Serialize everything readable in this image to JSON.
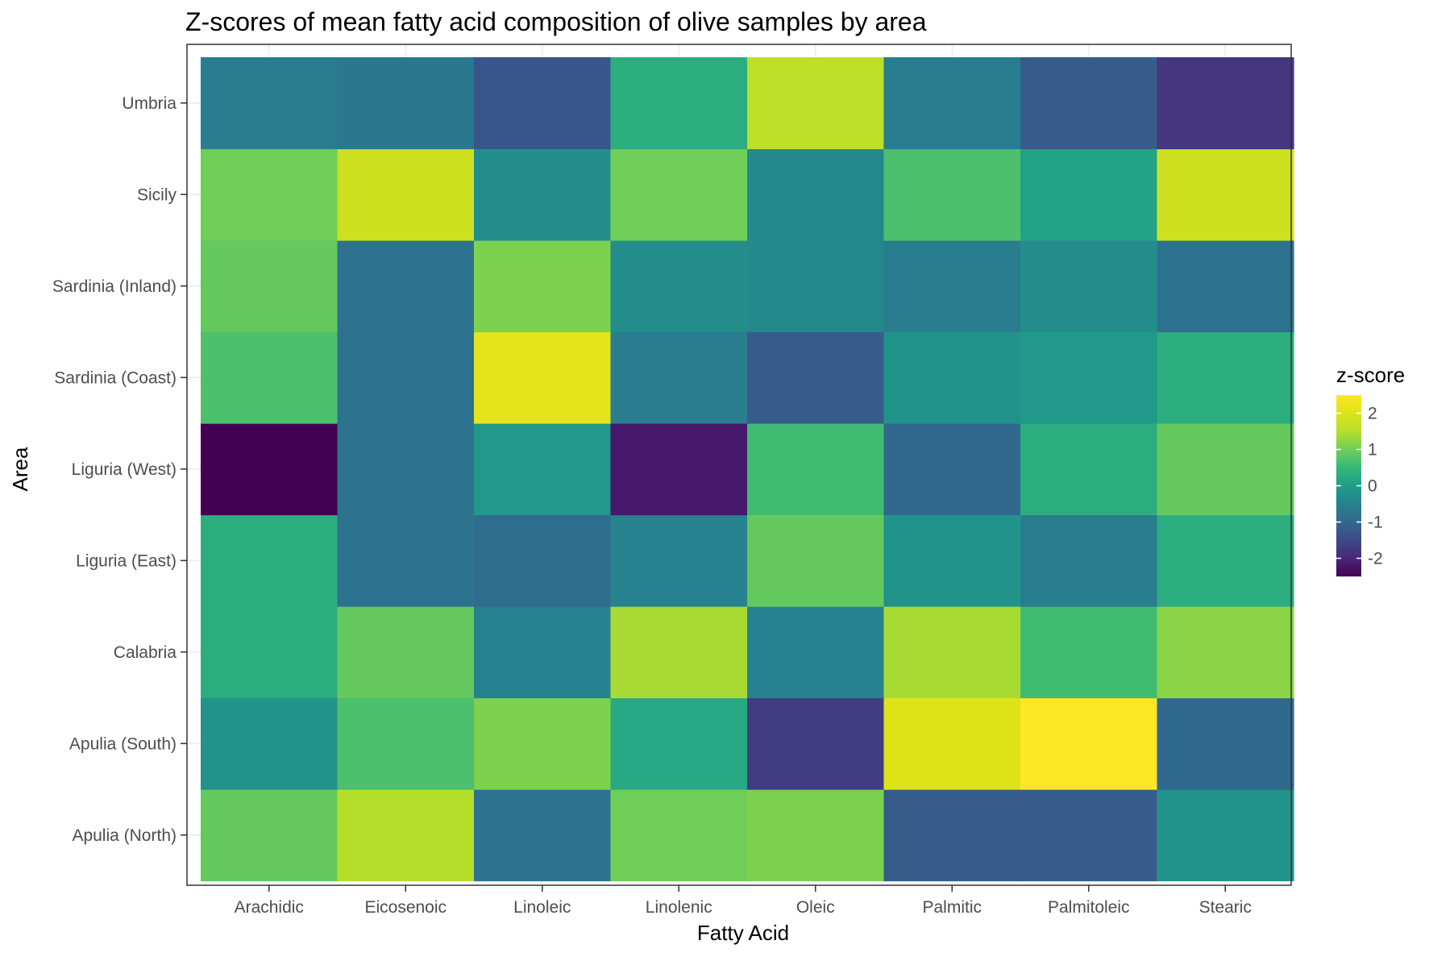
{
  "chart_data": {
    "type": "heatmap",
    "title": "Z-scores of mean fatty acid composition of olive samples by area",
    "xlabel": "Fatty Acid",
    "ylabel": "Area",
    "x_categories": [
      "Arachidic",
      "Eicosenoic",
      "Linoleic",
      "Linolenic",
      "Oleic",
      "Palmitic",
      "Palmitoleic",
      "Stearic"
    ],
    "y_categories": [
      "Apulia (North)",
      "Apulia (South)",
      "Calabria",
      "Liguria (East)",
      "Liguria (West)",
      "Sardinia (Coast)",
      "Sardinia (Inland)",
      "Sicily",
      "Umbria"
    ],
    "values": [
      [
        0.9,
        1.5,
        -0.8,
        1.0,
        1.1,
        -1.2,
        -1.2,
        -0.2
      ],
      [
        -0.2,
        0.7,
        1.1,
        0.2,
        -1.7,
        2.0,
        2.5,
        -1.0
      ],
      [
        0.3,
        0.9,
        -0.5,
        1.4,
        -0.5,
        1.4,
        0.6,
        1.2
      ],
      [
        0.3,
        -0.8,
        -0.9,
        -0.5,
        0.9,
        -0.2,
        -0.6,
        0.3
      ],
      [
        -2.5,
        -0.8,
        -0.1,
        -2.2,
        0.6,
        -1.0,
        0.3,
        0.9
      ],
      [
        0.7,
        -0.8,
        2.1,
        -0.6,
        -1.2,
        -0.2,
        -0.1,
        0.3
      ],
      [
        0.9,
        -0.8,
        1.1,
        -0.3,
        -0.4,
        -0.6,
        -0.3,
        -0.8
      ],
      [
        1.0,
        1.8,
        -0.3,
        1.0,
        -0.4,
        0.7,
        0.1,
        1.8
      ],
      [
        -0.6,
        -0.7,
        -1.3,
        0.3,
        1.6,
        -0.6,
        -1.2,
        -1.8
      ]
    ],
    "legend": {
      "title": "z-score",
      "ticks": [
        2,
        1,
        0,
        -1,
        -2
      ],
      "tick_labels": [
        "2",
        "1",
        "0",
        "-1",
        "-2"
      ],
      "range": [
        -2.5,
        2.5
      ],
      "placement": "right",
      "colormap": "viridis"
    },
    "grid": true
  }
}
